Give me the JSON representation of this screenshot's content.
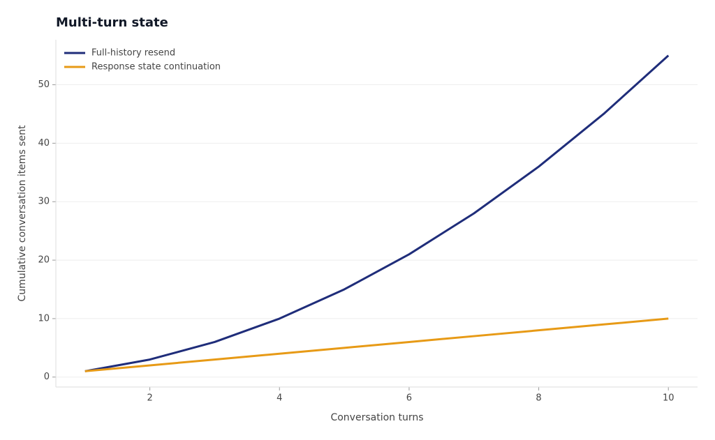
{
  "chart_data": {
    "type": "line",
    "title": "Multi-turn state",
    "x": [
      1,
      2,
      3,
      4,
      5,
      6,
      7,
      8,
      9,
      10
    ],
    "series": [
      {
        "name": "Full-history resend",
        "color": "#1f2d7a",
        "values": [
          1,
          3,
          6,
          10,
          15,
          21,
          28,
          36,
          45,
          55
        ]
      },
      {
        "name": "Response state continuation",
        "color": "#e79a16",
        "values": [
          1,
          2,
          3,
          4,
          5,
          6,
          7,
          8,
          9,
          10
        ]
      }
    ],
    "xlabel": "Conversation turns",
    "ylabel": "Cumulative conversation items sent",
    "xlim": [
      0.55,
      10.45
    ],
    "ylim": [
      -1.7,
      57.7
    ],
    "xticks": [
      2,
      4,
      6,
      8,
      10
    ],
    "yticks": [
      0,
      10,
      20,
      30,
      40,
      50
    ],
    "grid": true,
    "legend": "upper left"
  }
}
